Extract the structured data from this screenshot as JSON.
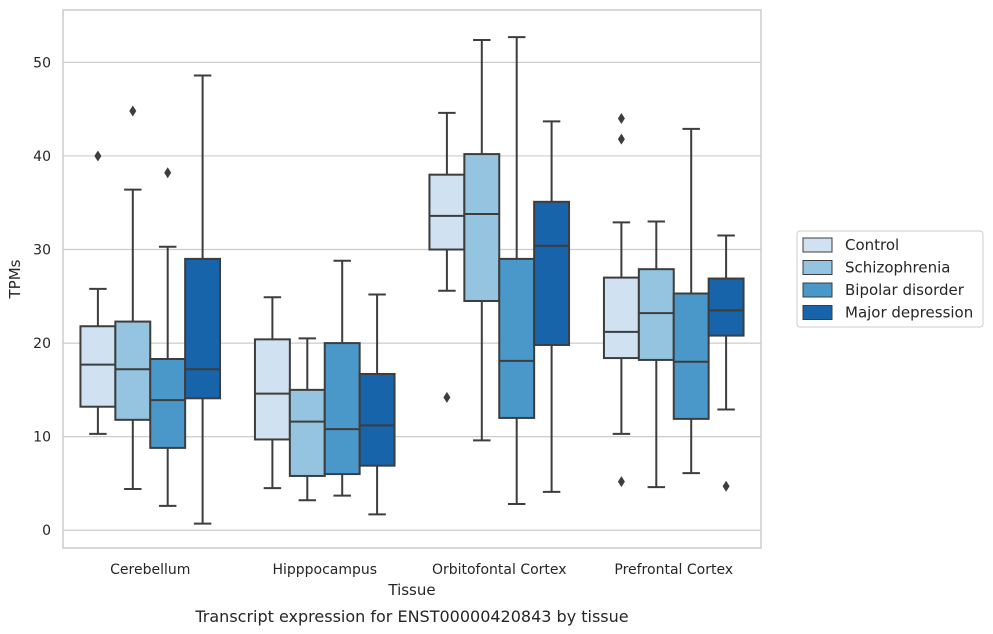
{
  "chart_data": {
    "type": "box",
    "title": "Transcript expression for ENST00000420843 by tissue",
    "xlabel": "Tissue",
    "ylabel": "TPMs",
    "ylim": [
      -1.9,
      55.6
    ],
    "yticks": [
      0,
      10,
      20,
      30,
      40,
      50
    ],
    "grid": true,
    "legend_position": "right",
    "categories": [
      "Cerebellum",
      "Hipppocampus",
      "Orbitofontal Cortex",
      "Prefrontal Cortex"
    ],
    "series": [
      {
        "name": "Control",
        "color": "#d0e1f2",
        "boxes": [
          {
            "whisker_low": 10.3,
            "q1": 13.2,
            "median": 17.7,
            "q3": 21.8,
            "whisker_high": 25.8,
            "outliers": [
              40.0
            ]
          },
          {
            "whisker_low": 4.5,
            "q1": 9.7,
            "median": 14.6,
            "q3": 20.4,
            "whisker_high": 24.9,
            "outliers": []
          },
          {
            "whisker_low": 25.6,
            "q1": 30.0,
            "median": 33.6,
            "q3": 38.0,
            "whisker_high": 44.6,
            "outliers": [
              14.2
            ]
          },
          {
            "whisker_low": 10.3,
            "q1": 18.4,
            "median": 21.2,
            "q3": 27.0,
            "whisker_high": 32.9,
            "outliers": [
              44.0,
              41.8,
              5.2
            ]
          }
        ]
      },
      {
        "name": "Schizophrenia",
        "color": "#94c4df",
        "boxes": [
          {
            "whisker_low": 4.4,
            "q1": 11.8,
            "median": 17.2,
            "q3": 22.3,
            "whisker_high": 36.4,
            "outliers": [
              44.8
            ]
          },
          {
            "whisker_low": 3.2,
            "q1": 5.8,
            "median": 11.6,
            "q3": 15.0,
            "whisker_high": 20.5,
            "outliers": []
          },
          {
            "whisker_low": 9.6,
            "q1": 24.5,
            "median": 33.8,
            "q3": 40.2,
            "whisker_high": 52.4,
            "outliers": []
          },
          {
            "whisker_low": 4.6,
            "q1": 18.2,
            "median": 23.2,
            "q3": 27.9,
            "whisker_high": 33.0,
            "outliers": []
          }
        ]
      },
      {
        "name": "Bipolar disorder",
        "color": "#4a98c9",
        "boxes": [
          {
            "whisker_low": 2.6,
            "q1": 8.8,
            "median": 13.9,
            "q3": 18.3,
            "whisker_high": 30.3,
            "outliers": [
              38.2
            ]
          },
          {
            "whisker_low": 3.7,
            "q1": 6.0,
            "median": 10.8,
            "q3": 20.0,
            "whisker_high": 28.8,
            "outliers": []
          },
          {
            "whisker_low": 2.8,
            "q1": 12.0,
            "median": 18.1,
            "q3": 29.0,
            "whisker_high": 52.7,
            "outliers": []
          },
          {
            "whisker_low": 6.1,
            "q1": 11.9,
            "median": 18.0,
            "q3": 25.3,
            "whisker_high": 42.9,
            "outliers": []
          }
        ]
      },
      {
        "name": "Major depression",
        "color": "#1764ab",
        "boxes": [
          {
            "whisker_low": 0.7,
            "q1": 14.1,
            "median": 17.2,
            "q3": 29.0,
            "whisker_high": 48.6,
            "outliers": []
          },
          {
            "whisker_low": 1.7,
            "q1": 6.9,
            "median": 11.2,
            "q3": 16.7,
            "whisker_high": 25.2,
            "outliers": []
          },
          {
            "whisker_low": 4.1,
            "q1": 19.8,
            "median": 30.4,
            "q3": 35.1,
            "whisker_high": 43.7,
            "outliers": []
          },
          {
            "whisker_low": 12.9,
            "q1": 20.8,
            "median": 23.5,
            "q3": 26.9,
            "whisker_high": 31.5,
            "outliers": [
              4.7
            ]
          }
        ]
      }
    ]
  }
}
